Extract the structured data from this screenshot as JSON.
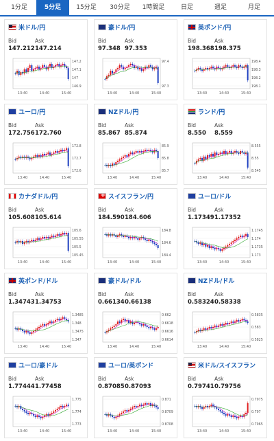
{
  "tabs": [
    {
      "label": "1分足",
      "active": false
    },
    {
      "label": "5分足",
      "active": true
    },
    {
      "label": "15分足",
      "active": false
    },
    {
      "label": "30分足",
      "active": false
    },
    {
      "label": "1時間足",
      "active": false
    },
    {
      "label": "日足",
      "active": false
    },
    {
      "label": "週足",
      "active": false
    },
    {
      "label": "月足",
      "active": false
    }
  ],
  "colors": {
    "accent": "#1a66c2",
    "up": "#e02020",
    "down": "#2040c0",
    "ma1": "#cc33cc",
    "ma2": "#33aa33"
  },
  "bid_label": "Bid",
  "ask_label": "Ask",
  "cards": [
    {
      "title": "米ドル/円",
      "flag": "us",
      "bid": "147.212",
      "ask": "147.214",
      "chart_data": {
        "type": "candlestick",
        "x_ticks": [
          "13:40",
          "14:40",
          "15:40"
        ],
        "y_ticks": [
          "147.2",
          "147.1",
          "147",
          "146.9"
        ],
        "trend": [
          0.5,
          0.4,
          0.55,
          0.45,
          0.5,
          0.35,
          0.45,
          0.3,
          0.2,
          0.4,
          0.35,
          0.3,
          0.25,
          0.35,
          0.3,
          0.2,
          0.25,
          0.35,
          0.25,
          0.15,
          0.3,
          0.25,
          0.2,
          0.15,
          0.25,
          0.2,
          0.15,
          0.25,
          0.3,
          0.7
        ]
      }
    },
    {
      "title": "豪ドル/円",
      "flag": "au",
      "bid": "97.348",
      "ask": "97.353",
      "chart_data": {
        "type": "candlestick",
        "x_ticks": [
          "13:40",
          "14:40",
          "15:40"
        ],
        "y_ticks": [
          "97.4",
          "97.3"
        ],
        "trend": [
          0.7,
          0.6,
          0.55,
          0.4,
          0.5,
          0.45,
          0.35,
          0.3,
          0.2,
          0.25,
          0.35,
          0.3,
          0.25,
          0.2,
          0.15,
          0.2,
          0.3,
          0.25,
          0.35,
          0.3,
          0.4,
          0.35,
          0.25,
          0.3,
          0.2,
          0.25,
          0.35,
          0.3,
          0.25,
          0.85
        ]
      }
    },
    {
      "title": "英ポンド/円",
      "flag": "gb",
      "bid": "198.368",
      "ask": "198.375",
      "chart_data": {
        "type": "candlestick",
        "x_ticks": [
          "13:40",
          "14:40",
          "15:40"
        ],
        "y_ticks": [
          "198.4",
          "198.3",
          "198.2",
          "198.1"
        ],
        "trend": [
          0.4,
          0.35,
          0.3,
          0.35,
          0.4,
          0.35,
          0.3,
          0.35,
          0.3,
          0.25,
          0.3,
          0.35,
          0.25,
          0.3,
          0.35,
          0.3,
          0.25,
          0.2,
          0.25,
          0.3,
          0.25,
          0.2,
          0.25,
          0.3,
          0.2,
          0.25,
          0.3,
          0.25,
          0.2,
          0.75
        ]
      }
    },
    {
      "title": "ユーロ/円",
      "flag": "eu",
      "bid": "172.756",
      "ask": "172.760",
      "chart_data": {
        "type": "candlestick",
        "x_ticks": [
          "13:40",
          "14:40",
          "15:40"
        ],
        "y_ticks": [
          "172.8",
          "172.7",
          "172.6"
        ],
        "trend": [
          0.55,
          0.5,
          0.45,
          0.5,
          0.45,
          0.5,
          0.45,
          0.5,
          0.55,
          0.5,
          0.45,
          0.4,
          0.45,
          0.4,
          0.45,
          0.35,
          0.4,
          0.35,
          0.3,
          0.4,
          0.35,
          0.3,
          0.25,
          0.3,
          0.25,
          0.2,
          0.25,
          0.2,
          0.15,
          0.8
        ]
      }
    },
    {
      "title": "NZドル/円",
      "flag": "nz",
      "bid": "85.867",
      "ask": "85.874",
      "chart_data": {
        "type": "candlestick",
        "x_ticks": [
          "13:40",
          "14:40",
          "15:40"
        ],
        "y_ticks": [
          "85.9",
          "85.8",
          "85.7"
        ],
        "trend": [
          0.75,
          0.8,
          0.75,
          0.8,
          0.7,
          0.75,
          0.65,
          0.6,
          0.55,
          0.5,
          0.45,
          0.4,
          0.45,
          0.35,
          0.3,
          0.35,
          0.3,
          0.25,
          0.3,
          0.25,
          0.3,
          0.25,
          0.2,
          0.25,
          0.2,
          0.25,
          0.3,
          0.2,
          0.25,
          0.5
        ]
      }
    },
    {
      "title": "ランド/円",
      "flag": "za",
      "bid": "8.550",
      "ask": "8.559",
      "chart_data": {
        "type": "candlestick",
        "x_ticks": [
          "13:40",
          "14:40",
          "15:40"
        ],
        "y_ticks": [
          "8.555",
          "8.55",
          "8.545"
        ],
        "trend": [
          0.7,
          0.6,
          0.55,
          0.5,
          0.6,
          0.45,
          0.55,
          0.4,
          0.45,
          0.35,
          0.45,
          0.3,
          0.4,
          0.35,
          0.3,
          0.35,
          0.25,
          0.35,
          0.3,
          0.25,
          0.35,
          0.3,
          0.25,
          0.3,
          0.35,
          0.25,
          0.3,
          0.35,
          0.3,
          0.85
        ]
      }
    },
    {
      "title": "カナダドル/円",
      "flag": "ca",
      "bid": "105.608",
      "ask": "105.614",
      "chart_data": {
        "type": "candlestick",
        "x_ticks": [
          "13:40",
          "14:40",
          "15:40"
        ],
        "y_ticks": [
          "105.6",
          "105.55",
          "105.5",
          "105.45"
        ],
        "trend": [
          0.5,
          0.45,
          0.5,
          0.45,
          0.55,
          0.5,
          0.45,
          0.5,
          0.45,
          0.4,
          0.45,
          0.4,
          0.35,
          0.4,
          0.35,
          0.3,
          0.35,
          0.3,
          0.35,
          0.3,
          0.25,
          0.3,
          0.25,
          0.2,
          0.25,
          0.2,
          0.15,
          0.2,
          0.15,
          0.8
        ]
      }
    },
    {
      "title": "スイスフラン/円",
      "flag": "ch",
      "bid": "184.590",
      "ask": "184.606",
      "chart_data": {
        "type": "candlestick",
        "x_ticks": [
          "13:40",
          "14:40",
          "15:40"
        ],
        "y_ticks": [
          "184.8",
          "184.6",
          "184.4"
        ],
        "trend": [
          0.2,
          0.25,
          0.2,
          0.25,
          0.2,
          0.25,
          0.3,
          0.25,
          0.2,
          0.25,
          0.3,
          0.25,
          0.3,
          0.35,
          0.3,
          0.35,
          0.3,
          0.35,
          0.4,
          0.35,
          0.3,
          0.35,
          0.4,
          0.45,
          0.4,
          0.45,
          0.5,
          0.55,
          0.6,
          0.7
        ]
      }
    },
    {
      "title": "ユーロ/ドル",
      "flag": "eu",
      "bid": "1.17349",
      "ask": "1.17352",
      "chart_data": {
        "type": "candlestick",
        "x_ticks": [
          "13:40",
          "14:40",
          "15:40"
        ],
        "y_ticks": [
          "1.1745",
          "1.174",
          "1.1735",
          "1.173"
        ],
        "trend": [
          0.45,
          0.5,
          0.55,
          0.5,
          0.6,
          0.55,
          0.65,
          0.6,
          0.7,
          0.65,
          0.7,
          0.75,
          0.7,
          0.75,
          0.8,
          0.75,
          0.7,
          0.65,
          0.6,
          0.55,
          0.5,
          0.45,
          0.4,
          0.35,
          0.3,
          0.25,
          0.3,
          0.25,
          0.2,
          0.3
        ]
      }
    },
    {
      "title": "英ポンド/ドル",
      "flag": "gb",
      "bid": "1.34743",
      "ask": "1.34753",
      "chart_data": {
        "type": "candlestick",
        "x_ticks": [
          "13:40",
          "14:40",
          "15:40"
        ],
        "y_ticks": [
          "1.3485",
          "1.348",
          "1.3475",
          "1.347"
        ],
        "trend": [
          0.55,
          0.6,
          0.55,
          0.6,
          0.65,
          0.7,
          0.65,
          0.7,
          0.75,
          0.7,
          0.65,
          0.6,
          0.55,
          0.5,
          0.45,
          0.4,
          0.45,
          0.4,
          0.35,
          0.3,
          0.35,
          0.3,
          0.25,
          0.2,
          0.25,
          0.2,
          0.15,
          0.2,
          0.25,
          0.3
        ]
      }
    },
    {
      "title": "豪ドル/ドル",
      "flag": "au",
      "bid": "0.66134",
      "ask": "0.66138",
      "chart_data": {
        "type": "candlestick",
        "x_ticks": [
          "13:40",
          "14:40",
          "15:40"
        ],
        "y_ticks": [
          "0.662",
          "0.6618",
          "0.6616",
          "0.6614"
        ],
        "trend": [
          0.7,
          0.65,
          0.6,
          0.55,
          0.5,
          0.45,
          0.4,
          0.3,
          0.35,
          0.25,
          0.2,
          0.3,
          0.25,
          0.35,
          0.3,
          0.4,
          0.35,
          0.3,
          0.35,
          0.4,
          0.45,
          0.4,
          0.45,
          0.5,
          0.55,
          0.5,
          0.55,
          0.6,
          0.55,
          0.5
        ]
      }
    },
    {
      "title": "NZドル/ドル",
      "flag": "nz",
      "bid": "0.58324",
      "ask": "0.58338",
      "chart_data": {
        "type": "candlestick",
        "x_ticks": [
          "13:40",
          "14:40",
          "15:40"
        ],
        "y_ticks": [
          "0.5835",
          "0.583",
          "0.5825"
        ],
        "trend": [
          0.7,
          0.65,
          0.6,
          0.65,
          0.6,
          0.55,
          0.6,
          0.55,
          0.5,
          0.55,
          0.5,
          0.45,
          0.5,
          0.45,
          0.4,
          0.45,
          0.4,
          0.35,
          0.4,
          0.35,
          0.3,
          0.35,
          0.3,
          0.25,
          0.3,
          0.25,
          0.2,
          0.25,
          0.3,
          0.35
        ]
      }
    },
    {
      "title": "ユーロ/豪ドル",
      "flag": "eu",
      "bid": "1.77444",
      "ask": "1.77458",
      "chart_data": {
        "type": "candlestick",
        "x_ticks": [
          "13:40",
          "14:40",
          "15:40"
        ],
        "y_ticks": [
          "1.775",
          "1.774",
          "1.773"
        ],
        "trend": [
          0.3,
          0.35,
          0.3,
          0.4,
          0.45,
          0.5,
          0.55,
          0.6,
          0.55,
          0.6,
          0.65,
          0.7,
          0.65,
          0.7,
          0.75,
          0.7,
          0.65,
          0.6,
          0.65,
          0.6,
          0.55,
          0.5,
          0.45,
          0.4,
          0.35,
          0.3,
          0.35,
          0.3,
          0.25,
          0.3
        ]
      }
    },
    {
      "title": "ユーロ/英ポンド",
      "flag": "eu",
      "bid": "0.87085",
      "ask": "0.87093",
      "chart_data": {
        "type": "candlestick",
        "x_ticks": [
          "13:40",
          "14:40",
          "15:40"
        ],
        "y_ticks": [
          "0.871",
          "0.8709",
          "0.8708"
        ],
        "trend": [
          0.6,
          0.65,
          0.6,
          0.65,
          0.7,
          0.75,
          0.7,
          0.65,
          0.6,
          0.55,
          0.5,
          0.45,
          0.5,
          0.45,
          0.4,
          0.35,
          0.3,
          0.35,
          0.3,
          0.25,
          0.3,
          0.25,
          0.2,
          0.25,
          0.2,
          0.3,
          0.25,
          0.3,
          0.35,
          0.4
        ]
      }
    },
    {
      "title": "米ドル/スイスフラン",
      "flag": "us",
      "bid": "0.79741",
      "ask": "0.79756",
      "chart_data": {
        "type": "candlestick",
        "x_ticks": [
          "13:40",
          "14:40",
          "15:40"
        ],
        "y_ticks": [
          "0.7975",
          "0.797",
          "0.7965"
        ],
        "trend": [
          0.3,
          0.35,
          0.3,
          0.35,
          0.4,
          0.35,
          0.3,
          0.35,
          0.3,
          0.25,
          0.3,
          0.35,
          0.4,
          0.45,
          0.5,
          0.55,
          0.6,
          0.65,
          0.6,
          0.65,
          0.7,
          0.65,
          0.7,
          0.75,
          0.7,
          0.65,
          0.7,
          0.6,
          0.55,
          0.2
        ]
      }
    }
  ]
}
